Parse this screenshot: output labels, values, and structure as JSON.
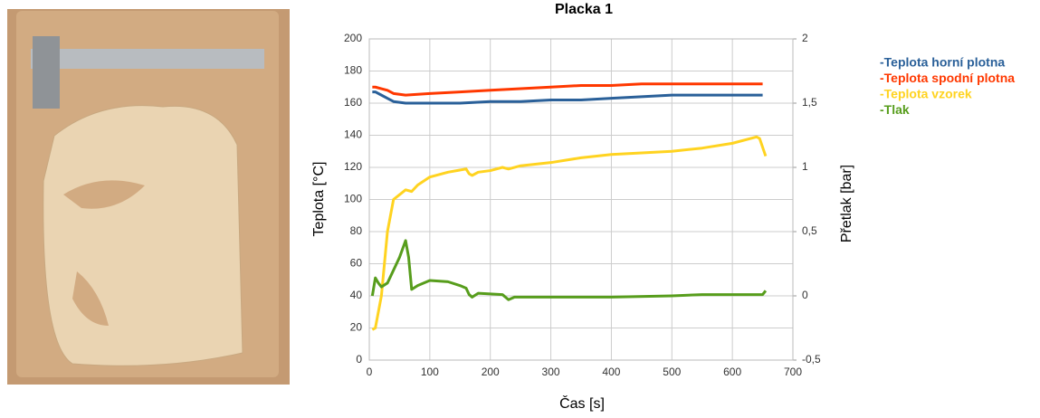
{
  "chart_data": {
    "type": "line",
    "title": "Placka 1",
    "x_label": "Čas [s]",
    "y_label": "Teplota [°C]",
    "y2_label": "Přetlak [bar]",
    "xlim": [
      0,
      700
    ],
    "xticks": [
      0,
      100,
      200,
      300,
      400,
      500,
      600,
      700
    ],
    "ylim": [
      0,
      200
    ],
    "yticks": [
      0,
      20,
      40,
      60,
      80,
      100,
      120,
      140,
      160,
      180,
      200
    ],
    "y2lim": [
      -0.5,
      2
    ],
    "y2ticks": [
      {
        "value": -0.5,
        "label": "-0,5"
      },
      0,
      {
        "value": 0.5,
        "label": "0,5"
      },
      1,
      {
        "value": 1.5,
        "label": "1,5"
      },
      2
    ],
    "grid": true,
    "legend": "right",
    "series": [
      {
        "name": "-Teplota horní plotna",
        "color": "#2a6099",
        "x": [
          5,
          10,
          20,
          30,
          40,
          60,
          100,
          150,
          200,
          250,
          300,
          350,
          400,
          450,
          500,
          550,
          600,
          650
        ],
        "values": [
          167,
          167,
          165,
          163,
          161,
          160,
          160,
          160,
          161,
          161,
          162,
          162,
          163,
          164,
          165,
          165,
          165,
          165
        ]
      },
      {
        "name": "-Teplota spodní plotna",
        "color": "#ff3800",
        "x": [
          5,
          10,
          20,
          30,
          40,
          60,
          100,
          150,
          200,
          250,
          300,
          350,
          400,
          450,
          500,
          550,
          600,
          650
        ],
        "values": [
          170,
          170,
          169,
          168,
          166,
          165,
          166,
          167,
          168,
          169,
          170,
          171,
          171,
          172,
          172,
          172,
          172,
          172
        ]
      },
      {
        "name": "-Teplota vzorek",
        "color": "#ffd320",
        "x": [
          5,
          10,
          20,
          25,
          30,
          40,
          50,
          60,
          70,
          80,
          100,
          130,
          160,
          165,
          170,
          180,
          200,
          220,
          230,
          250,
          300,
          350,
          400,
          450,
          500,
          550,
          600,
          640,
          645,
          655
        ],
        "values": [
          19,
          20,
          40,
          60,
          80,
          100,
          103,
          106,
          105,
          109,
          114,
          117,
          119,
          116,
          115,
          117,
          118,
          120,
          119,
          121,
          123,
          126,
          128,
          129,
          130,
          132,
          135,
          139,
          138,
          127
        ]
      },
      {
        "name": "-Tlak",
        "color": "#579d1c",
        "axis": "y2",
        "x": [
          5,
          10,
          15,
          20,
          30,
          40,
          50,
          60,
          65,
          70,
          80,
          100,
          130,
          150,
          160,
          165,
          170,
          180,
          220,
          230,
          240,
          300,
          400,
          500,
          550,
          600,
          650,
          655
        ],
        "values": [
          0,
          0.14,
          0.1,
          0.07,
          0.1,
          0.2,
          0.3,
          0.43,
          0.3,
          0.05,
          0.08,
          0.12,
          0.11,
          0.08,
          0.06,
          0.01,
          -0.01,
          0.02,
          0.01,
          -0.03,
          -0.01,
          -0.01,
          -0.01,
          0,
          0.01,
          0.01,
          0.01,
          0.04
        ]
      }
    ]
  }
}
